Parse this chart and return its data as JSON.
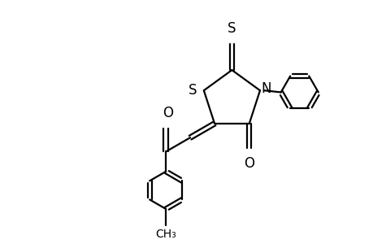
{
  "bg_color": "#ffffff",
  "line_color": "#000000",
  "line_width": 1.6,
  "font_size": 12,
  "fig_width": 4.6,
  "fig_height": 3.0,
  "dpi": 100,
  "xlim": [
    0,
    9.5
  ],
  "ylim": [
    0,
    6.5
  ]
}
